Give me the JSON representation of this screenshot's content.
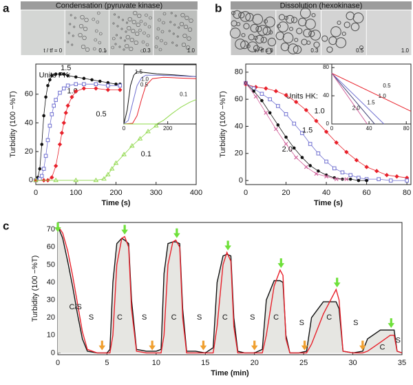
{
  "chart_data": [
    {
      "type": "scatter",
      "panel_label": "a",
      "header": "Condensation (pyruvate kinase)",
      "image_labels": [
        "t / tf = 0",
        "0.1",
        "0.3",
        "1.0"
      ],
      "xlabel": "Time (s)",
      "ylabel": "Turbidity (100 −%T)",
      "units_label": "Units PK:",
      "xlim": [
        0,
        400
      ],
      "xticks": [
        0,
        100,
        200,
        300,
        400
      ],
      "ylim": [
        -3,
        81
      ],
      "yticks": [
        0,
        20,
        40,
        60
      ],
      "series": [
        {
          "name": "1.5",
          "color": "#111111",
          "marker": "circle",
          "x": [
            0,
            5,
            10,
            15,
            20,
            25,
            30,
            35,
            40,
            50,
            60,
            70,
            80,
            100,
            120,
            140,
            160,
            180,
            200,
            210
          ],
          "values": [
            0,
            2,
            8,
            25,
            45,
            58,
            66,
            70,
            73,
            74,
            74,
            74,
            73,
            72,
            71,
            70,
            69,
            68,
            67,
            67
          ]
        },
        {
          "name": "1.0",
          "color": "#6f6fd0",
          "marker": "square-open",
          "x": [
            0,
            10,
            15,
            20,
            25,
            30,
            35,
            40,
            45,
            50,
            60,
            70,
            80,
            100,
            120,
            150,
            180,
            210
          ],
          "values": [
            0,
            1,
            3,
            8,
            17,
            28,
            38,
            46,
            52,
            56,
            61,
            64,
            66,
            67,
            67,
            67,
            66,
            66
          ]
        },
        {
          "name": "0.5",
          "color": "#e8202a",
          "marker": "diamond",
          "x": [
            0,
            20,
            30,
            40,
            50,
            60,
            65,
            70,
            75,
            80,
            90,
            100,
            120,
            150,
            180,
            210
          ],
          "values": [
            0,
            0,
            0,
            2,
            10,
            25,
            33,
            40,
            47,
            52,
            58,
            62,
            64,
            64,
            63,
            63
          ]
        },
        {
          "name": "0.1",
          "color": "#8fd84a",
          "marker": "triangle-open",
          "x": [
            0,
            50,
            100,
            150,
            170,
            180,
            190,
            200,
            220,
            240,
            260,
            280,
            300,
            320,
            340,
            355
          ],
          "values": [
            0,
            0,
            0,
            0,
            1,
            4,
            8,
            12,
            18,
            24,
            29,
            34,
            38,
            42,
            45,
            46
          ]
        }
      ]
    },
    {
      "type": "line",
      "xlim": [
        0,
        330
      ],
      "xticks": [
        0,
        200
      ],
      "ylim": [
        0,
        85
      ],
      "series": [
        {
          "name": "1.5",
          "color": "#111111",
          "x": [
            0,
            15,
            30,
            45,
            60,
            90,
            150,
            250,
            330
          ],
          "values": [
            0,
            20,
            55,
            70,
            75,
            74,
            72,
            70,
            68
          ]
        },
        {
          "name": "1.0",
          "color": "#6f6fd0",
          "x": [
            0,
            20,
            40,
            60,
            80,
            100,
            150,
            250,
            330
          ],
          "values": [
            0,
            5,
            30,
            55,
            66,
            70,
            70,
            69,
            68
          ]
        },
        {
          "name": "0.5",
          "color": "#e8202a",
          "x": [
            0,
            40,
            60,
            80,
            100,
            130,
            180,
            250,
            330
          ],
          "values": [
            0,
            1,
            12,
            35,
            55,
            65,
            67,
            66,
            65
          ]
        },
        {
          "name": "0.1",
          "color": "#8fd84a",
          "x": [
            0,
            150,
            180,
            220,
            260,
            300,
            330
          ],
          "values": [
            0,
            0,
            5,
            15,
            24,
            31,
            35
          ]
        }
      ]
    },
    {
      "type": "scatter",
      "panel_label": "b",
      "header": "Dissolution (hexokinase)",
      "image_labels": [
        "t / tf = 0",
        "0.3",
        "0.5",
        "1.0"
      ],
      "xlabel": "Time (s)",
      "ylabel": "Turbidity (100 −%T)",
      "units_label": "Units HK:",
      "xlim": [
        0,
        82
      ],
      "xticks": [
        0,
        20,
        40,
        60,
        80
      ],
      "ylim": [
        -3,
        86
      ],
      "yticks": [
        0,
        20,
        40,
        60,
        80
      ],
      "series": [
        {
          "name": "0.5",
          "color": "#e8202a",
          "marker": "diamond",
          "x": [
            0,
            5,
            10,
            15,
            20,
            25,
            30,
            35,
            40,
            45,
            50,
            55,
            60,
            65,
            70,
            75,
            80
          ],
          "values": [
            71,
            69,
            68,
            66,
            63,
            58,
            52,
            44,
            36,
            28,
            21,
            15,
            10,
            7,
            4,
            3,
            2
          ]
        },
        {
          "name": "1.0",
          "color": "#6f6fd0",
          "marker": "square-open",
          "x": [
            0,
            4,
            8,
            12,
            16,
            20,
            24,
            28,
            32,
            36,
            40,
            44,
            48,
            52,
            56,
            60,
            66,
            72,
            80
          ],
          "values": [
            72,
            68,
            64,
            60,
            55,
            49,
            42,
            35,
            27,
            20,
            14,
            9,
            6,
            4,
            2,
            1,
            1,
            0,
            0
          ]
        },
        {
          "name": "1.5",
          "color": "#111111",
          "marker": "circle",
          "x": [
            0,
            4,
            8,
            12,
            16,
            20,
            24,
            28,
            32,
            36,
            40,
            44,
            48,
            52,
            56,
            60
          ],
          "values": [
            72,
            66,
            59,
            50,
            41,
            32,
            24,
            17,
            11,
            7,
            4,
            2,
            1,
            1,
            0,
            0
          ]
        },
        {
          "name": "2.0",
          "color": "#d0609a",
          "marker": "cross",
          "x": [
            0,
            5,
            10,
            15,
            20,
            25,
            30,
            35,
            40,
            45,
            50
          ],
          "values": [
            72,
            62,
            50,
            38,
            27,
            17,
            10,
            5,
            3,
            1,
            1
          ]
        }
      ]
    },
    {
      "type": "line",
      "xlim": [
        0,
        85
      ],
      "xticks": [
        0,
        40,
        80
      ],
      "ylim": [
        0,
        85
      ],
      "yticks": [
        0,
        40,
        80
      ],
      "series": [
        {
          "name": "0.5",
          "color": "#e8202a",
          "x": [
            0,
            85
          ],
          "values": [
            72,
            18
          ]
        },
        {
          "name": "1.0",
          "color": "#6f6fd0",
          "x": [
            0,
            56
          ],
          "values": [
            72,
            0
          ]
        },
        {
          "name": "1.5",
          "color": "#444477",
          "x": [
            0,
            46
          ],
          "values": [
            72,
            0
          ]
        },
        {
          "name": "2.0",
          "color": "#d0609a",
          "x": [
            0,
            38
          ],
          "values": [
            72,
            0
          ]
        }
      ]
    },
    {
      "type": "line",
      "panel_label": "c",
      "xlabel": "Time (min)",
      "ylabel": "Turbidity (100 −%T)",
      "xlim": [
        0,
        35
      ],
      "xticks": [
        0,
        5,
        10,
        15,
        20,
        25,
        30,
        35
      ],
      "ylim": [
        -1,
        74
      ],
      "yticks": [
        0,
        10,
        20,
        30,
        40,
        50,
        60,
        70
      ],
      "x": [
        0,
        0.5,
        1,
        1.5,
        2,
        2.5,
        3,
        4,
        5,
        5.3,
        5.6,
        6,
        6.5,
        6.8,
        7.2,
        7.5,
        8,
        9,
        10,
        10.5,
        10.8,
        11.2,
        11.7,
        12,
        12.4,
        12.7,
        13.1,
        14,
        15,
        15.8,
        16.2,
        16.8,
        17.2,
        17.6,
        17.9,
        18.3,
        19,
        20,
        20.8,
        21.2,
        22,
        22.6,
        22.9,
        23.2,
        23.6,
        24.5,
        25.3,
        25.8,
        27,
        28.3,
        28.6,
        29,
        30,
        31,
        31.5,
        32.8,
        33.8,
        34.2,
        34.5,
        35
      ],
      "series": [
        {
          "color": "#111111",
          "values": [
            72,
            65,
            52,
            38,
            22,
            8,
            1,
            0,
            0,
            2,
            40,
            62,
            65,
            64,
            62,
            30,
            2,
            1,
            1,
            2,
            45,
            62,
            63,
            63,
            62,
            25,
            1,
            1,
            0,
            3,
            40,
            55,
            56,
            55,
            20,
            1,
            0,
            0,
            2,
            30,
            41,
            41,
            40,
            10,
            0,
            0,
            1,
            20,
            29,
            29,
            25,
            1,
            0,
            1,
            8,
            13,
            13,
            13,
            1,
            0
          ]
        },
        {
          "color": "#e8202a",
          "values": [
            72,
            68,
            58,
            44,
            28,
            12,
            2,
            0,
            0,
            0,
            10,
            50,
            65,
            66,
            60,
            25,
            1,
            0,
            0,
            0,
            10,
            50,
            63,
            64,
            60,
            20,
            0,
            0,
            0,
            0,
            15,
            50,
            57,
            52,
            15,
            0,
            0,
            0,
            0,
            10,
            38,
            47,
            44,
            8,
            0,
            0,
            0,
            5,
            22,
            36,
            30,
            1,
            0,
            0,
            1,
            6,
            10,
            10,
            1,
            0
          ]
        }
      ],
      "annotations": [
        "C/S",
        "S",
        "C",
        "S",
        "C",
        "S",
        "C",
        "S",
        "C",
        "S",
        "C",
        "S",
        "C",
        "S"
      ],
      "add_arrows": [
        0,
        6.8,
        12.1,
        17.3,
        22.7,
        28.4,
        33.9
      ],
      "remove_arrows": [
        4.5,
        9.6,
        14.8,
        20,
        25.1,
        31
      ]
    }
  ]
}
